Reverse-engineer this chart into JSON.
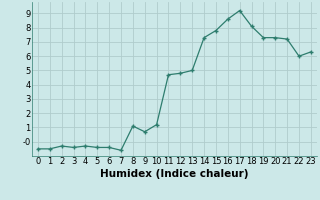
{
  "x": [
    0,
    1,
    2,
    3,
    4,
    5,
    6,
    7,
    8,
    9,
    10,
    11,
    12,
    13,
    14,
    15,
    16,
    17,
    18,
    19,
    20,
    21,
    22,
    23
  ],
  "y": [
    -0.5,
    -0.5,
    -0.3,
    -0.4,
    -0.3,
    -0.4,
    -0.4,
    -0.6,
    1.1,
    0.7,
    1.2,
    4.7,
    4.8,
    5.0,
    7.3,
    7.8,
    8.6,
    9.2,
    8.1,
    7.3,
    7.3,
    7.2,
    6.0,
    6.3
  ],
  "xlabel": "Humidex (Indice chaleur)",
  "xlim": [
    -0.5,
    23.5
  ],
  "ylim": [
    -1.0,
    9.8
  ],
  "yticks": [
    0,
    1,
    2,
    3,
    4,
    5,
    6,
    7,
    8,
    9
  ],
  "ytick_labels": [
    "-0",
    "1",
    "2",
    "3",
    "4",
    "5",
    "6",
    "7",
    "8",
    "9"
  ],
  "xticks": [
    0,
    1,
    2,
    3,
    4,
    5,
    6,
    7,
    8,
    9,
    10,
    11,
    12,
    13,
    14,
    15,
    16,
    17,
    18,
    19,
    20,
    21,
    22,
    23
  ],
  "line_color": "#2e7d6e",
  "marker": "+",
  "bg_color": "#cce8e8",
  "grid_color": "#b0cccc",
  "xlabel_fontsize": 7.5,
  "tick_fontsize": 6.0
}
